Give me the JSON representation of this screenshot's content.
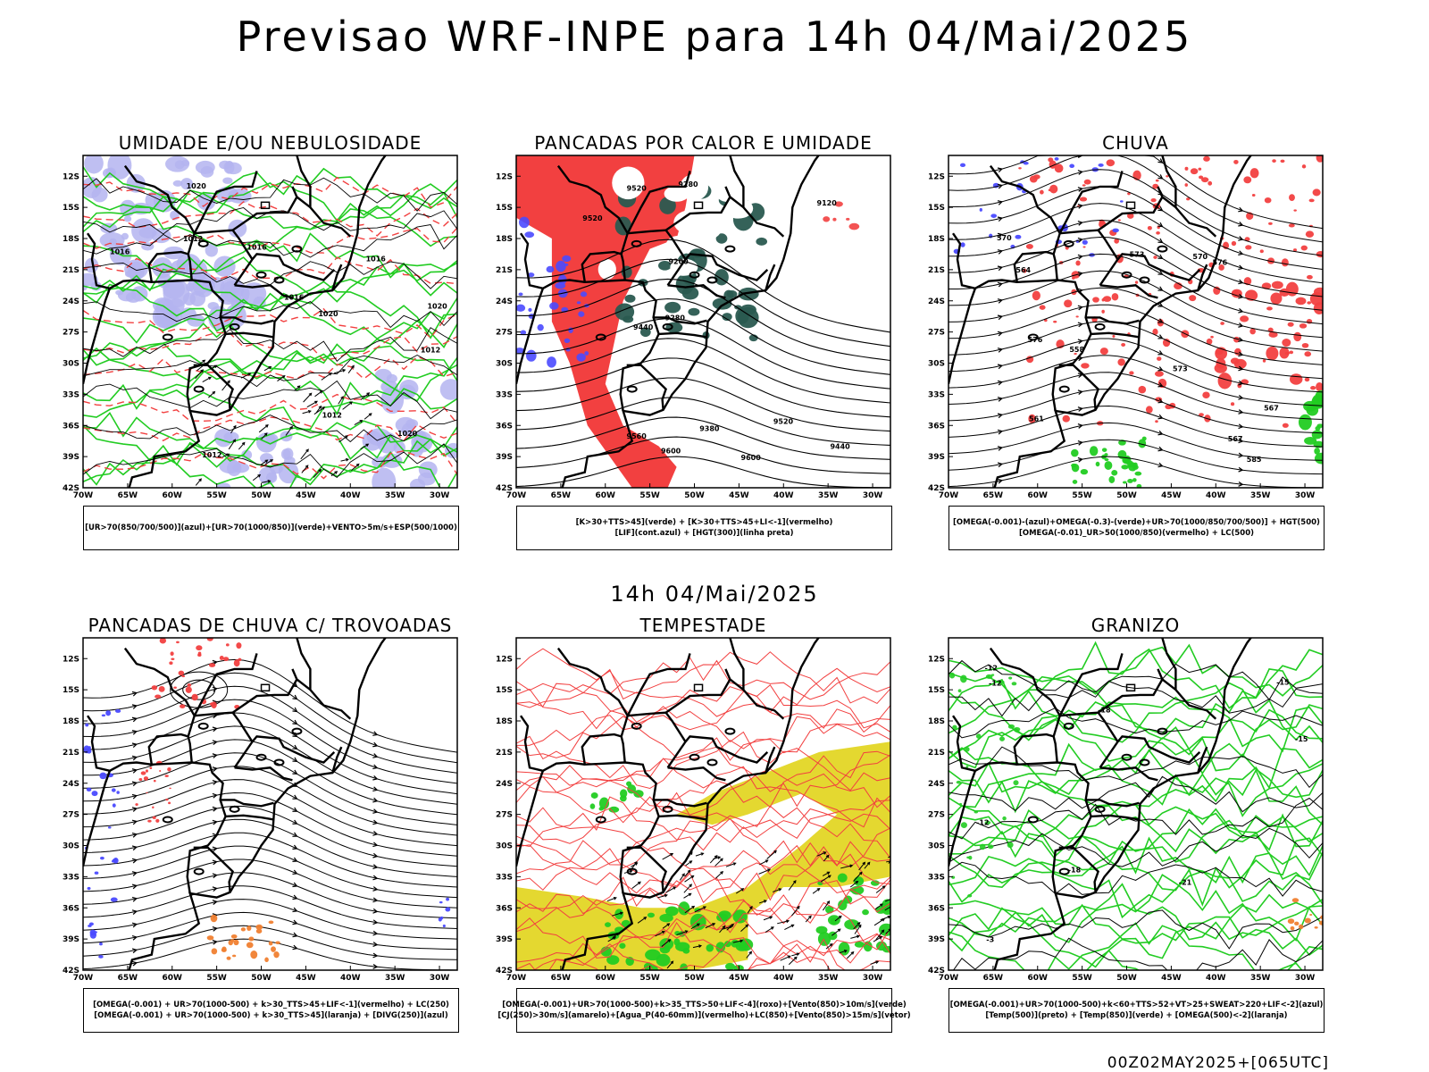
{
  "title": "Previsao WRF-INPE  para 14h 04/Mai/2025",
  "mid_title": "14h 04/Mai/2025",
  "footer": "00Z02MAY2025+[065UTC]",
  "colors": {
    "red": "#f24040",
    "blue": "#4a4aff",
    "green": "#22cc22",
    "lightblue": "#b4b4f0",
    "darkteal": "#2a5a50",
    "yellow": "#e4d830",
    "orange": "#f08030",
    "black": "#000000"
  },
  "chart_data": [
    {
      "type": "heatmap",
      "title": "UMIDADE E/OU NEBULOSIDADE",
      "xlim": [
        -70,
        -28
      ],
      "ylim": [
        -42,
        -10
      ],
      "xticks": [
        "70W",
        "65W",
        "60W",
        "55W",
        "50W",
        "45W",
        "40W",
        "35W",
        "30W"
      ],
      "yticks": [
        "12S",
        "15S",
        "18S",
        "21S",
        "24S",
        "27S",
        "30S",
        "33S",
        "36S",
        "39S",
        "42S"
      ],
      "contour_labels": [
        "1012",
        "1012",
        "1016",
        "1016",
        "1012",
        "1012",
        "1016",
        "1020",
        "1020",
        "1020",
        "1016",
        "1020"
      ],
      "legend": [
        "[UR>70(850/700/500)](azul)+[UR>70(1000/850)](verde)+VENTO>5m/s+ESP(500/1000)"
      ]
    },
    {
      "type": "heatmap",
      "title": "PANCADAS POR CALOR E UMIDADE",
      "xlim": [
        -70,
        -28
      ],
      "ylim": [
        -42,
        -10
      ],
      "xticks": [
        "70W",
        "65W",
        "60W",
        "55W",
        "50W",
        "45W",
        "40W",
        "35W",
        "30W"
      ],
      "yticks": [
        "12S",
        "15S",
        "18S",
        "21S",
        "24S",
        "27S",
        "30S",
        "33S",
        "36S",
        "39S",
        "42S"
      ],
      "contour_labels": [
        "9600",
        "9600",
        "9560",
        "9520",
        "9520",
        "9520",
        "9440",
        "9440",
        "9280",
        "9200",
        "9120",
        "9380",
        "9280"
      ],
      "legend": [
        "[K>30+TTS>45](verde) + [K>30+TTS>45+LI<-1](vermelho)",
        "[LIF](cont.azul) + [HGT(300)](linha preta)"
      ]
    },
    {
      "type": "heatmap",
      "title": "CHUVA",
      "xlim": [
        -70,
        -28
      ],
      "ylim": [
        -42,
        -10
      ],
      "xticks": [
        "70W",
        "65W",
        "60W",
        "55W",
        "50W",
        "45W",
        "40W",
        "35W",
        "30W"
      ],
      "yticks": [
        "12S",
        "15S",
        "18S",
        "21S",
        "24S",
        "27S",
        "30S",
        "33S",
        "36S",
        "39S",
        "42S"
      ],
      "contour_labels": [
        "585",
        "576",
        "573",
        "570",
        "567",
        "564",
        "561",
        "558",
        "576",
        "573",
        "570",
        "567"
      ],
      "legend": [
        "[OMEGA(-0.001)-(azul)+OMEGA(-0.3)-(verde)+UR>70(1000/850/700/500)] + HGT(500)",
        "[OMEGA(-0.01)_UR>50(1000/850)(vermelho) + LC(500)"
      ]
    },
    {
      "type": "heatmap",
      "title": "PANCADAS DE CHUVA C/ TROVOADAS",
      "xlim": [
        -70,
        -28
      ],
      "ylim": [
        -42,
        -10
      ],
      "xticks": [
        "70W",
        "65W",
        "60W",
        "55W",
        "50W",
        "45W",
        "40W",
        "35W",
        "30W"
      ],
      "yticks": [
        "12S",
        "15S",
        "18S",
        "21S",
        "24S",
        "27S",
        "30S",
        "33S",
        "36S",
        "39S",
        "42S"
      ],
      "contour_labels": [],
      "legend": [
        "[OMEGA(-0.001) + UR>70(1000-500) + k>30_TTS>45+LIF<-1](vermelho) + LC(250)",
        "[OMEGA(-0.001) + UR>70(1000-500) + k>30_TTS>45](laranja) + [DIVG(250)](azul)"
      ]
    },
    {
      "type": "heatmap",
      "title": "TEMPESTADE",
      "xlim": [
        -70,
        -28
      ],
      "ylim": [
        -42,
        -10
      ],
      "xticks": [
        "70W",
        "65W",
        "60W",
        "55W",
        "50W",
        "45W",
        "40W",
        "35W",
        "30W"
      ],
      "yticks": [
        "12S",
        "15S",
        "18S",
        "21S",
        "24S",
        "27S",
        "30S",
        "33S",
        "36S",
        "39S",
        "42S"
      ],
      "contour_labels": [],
      "legend": [
        "[OMEGA(-0.001)+UR>70(1000-500)+k>35_TTS>50+LIF<-4](roxo)+[Vento(850)>10m/s](verde)",
        "[CJ(250)>30m/s](amarelo)+[Agua_P(40-60mm)](vermelho)+LC(850)+[Vento(850)>15m/s](vetor)"
      ]
    },
    {
      "type": "heatmap",
      "title": "GRANIZO",
      "xlim": [
        -70,
        -28
      ],
      "ylim": [
        -42,
        -10
      ],
      "xticks": [
        "70W",
        "65W",
        "60W",
        "55W",
        "50W",
        "45W",
        "40W",
        "35W",
        "30W"
      ],
      "yticks": [
        "12S",
        "15S",
        "18S",
        "21S",
        "24S",
        "27S",
        "30S",
        "33S",
        "36S",
        "39S",
        "42S"
      ],
      "contour_labels": [
        "-12",
        "-12",
        "-12",
        "-15",
        "-15",
        "-21",
        "-18",
        "-18",
        "-3"
      ],
      "legend": [
        "[OMEGA(-0.001)+UR>70(1000-500)+k<60+TTS>52+VT>25+SWEAT>220+LIF<-2](azul)",
        "[Temp(500)](preto) + [Temp(850)](verde) + [OMEGA(500)<-2](laranja)"
      ]
    }
  ]
}
